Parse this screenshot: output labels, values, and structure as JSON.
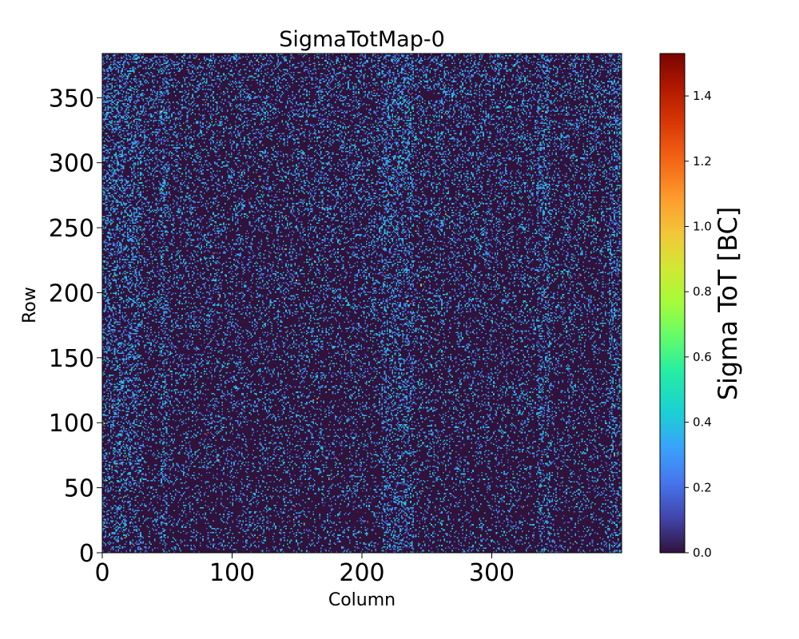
{
  "chart_data": {
    "type": "heatmap",
    "title": "SigmaTotMap-0",
    "xlabel": "Column",
    "ylabel": "Row",
    "colorbar_label": "Sigma ToT [BC]",
    "colormap": "turbo",
    "xlim": [
      0,
      400
    ],
    "ylim": [
      0,
      384
    ],
    "grid_columns": 400,
    "grid_rows": 384,
    "x_ticks": [
      0,
      100,
      200,
      300
    ],
    "y_ticks": [
      0,
      50,
      100,
      150,
      200,
      250,
      300,
      350
    ],
    "colorbar_range": [
      0.0,
      1.53
    ],
    "colorbar_ticks": [
      0.0,
      0.2,
      0.4,
      0.6,
      0.8,
      1.0,
      1.2,
      1.4
    ],
    "colorbar_tick_labels": [
      "0.0",
      "0.2",
      "0.4",
      "0.6",
      "0.8",
      "1.0",
      "1.2",
      "1.4"
    ],
    "background_value": 0.0,
    "typical_nonzero_value": 0.4,
    "max_value": 1.53,
    "column_bands_elevated": [
      [
        0,
        30
      ],
      [
        45,
        50
      ],
      [
        215,
        240
      ],
      [
        335,
        345
      ],
      [
        390,
        400
      ]
    ],
    "grid": false
  }
}
